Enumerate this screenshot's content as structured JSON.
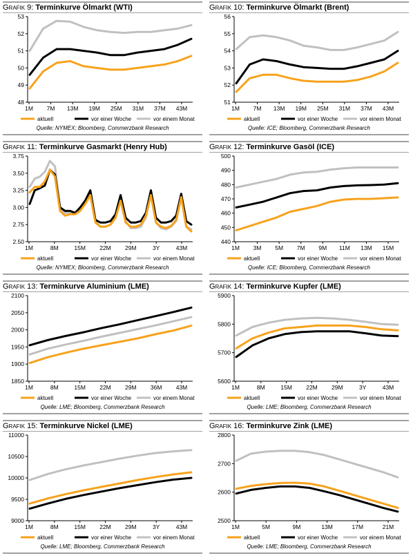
{
  "colors": {
    "aktuell": "#f7a21b",
    "woche": "#000000",
    "monat": "#c0c0c0"
  },
  "chart_data": [
    {
      "type": "line",
      "title_prefix": "Grafik 9:",
      "title": "Terminkurve Ölmarkt (WTI)",
      "source": "Quelle: NYMEX; Bloomberg, Commerzbank Research",
      "x_ticks": [
        "1M",
        "7M",
        "13M",
        "19M",
        "25M",
        "31M",
        "37M",
        "43M"
      ],
      "ylim": [
        48,
        53
      ],
      "y_ticks": [
        48,
        49,
        50,
        51,
        52,
        53
      ],
      "series": [
        {
          "name": "aktuell",
          "values": [
            48.8,
            49.8,
            50.3,
            50.4,
            50.1,
            50.0,
            49.9,
            49.9,
            50.0,
            50.1,
            50.2,
            50.4,
            50.7
          ]
        },
        {
          "name": "vor einer Woche",
          "values": [
            49.6,
            50.6,
            51.1,
            51.1,
            51.0,
            50.9,
            50.75,
            50.75,
            50.9,
            51.0,
            51.1,
            51.35,
            51.7
          ]
        },
        {
          "name": "vor einem Monat",
          "values": [
            51.0,
            52.3,
            52.75,
            52.7,
            52.4,
            52.2,
            52.1,
            52.05,
            52.1,
            52.1,
            52.2,
            52.3,
            52.5
          ]
        }
      ]
    },
    {
      "type": "line",
      "title_prefix": "Grafik 10:",
      "title": "Terminkurve Ölmarkt (Brent)",
      "source": "Quelle: ICE; Bloomberg, Commerzbank Research",
      "x_ticks": [
        "1M",
        "7M",
        "13M",
        "19M",
        "25M",
        "31M",
        "37M",
        "43M"
      ],
      "ylim": [
        51,
        56
      ],
      "y_ticks": [
        51,
        52,
        53,
        54,
        55,
        56
      ],
      "series": [
        {
          "name": "aktuell",
          "values": [
            51.6,
            52.4,
            52.6,
            52.6,
            52.4,
            52.25,
            52.2,
            52.2,
            52.2,
            52.3,
            52.5,
            52.8,
            53.3
          ]
        },
        {
          "name": "vor einer Woche",
          "values": [
            52.1,
            53.2,
            53.5,
            53.4,
            53.2,
            53.05,
            53.0,
            52.95,
            52.95,
            53.1,
            53.3,
            53.5,
            54.0
          ]
        },
        {
          "name": "vor einem Monat",
          "values": [
            54.1,
            54.8,
            54.9,
            54.8,
            54.6,
            54.3,
            54.2,
            54.05,
            54.05,
            54.2,
            54.4,
            54.6,
            55.1
          ]
        }
      ]
    },
    {
      "type": "line",
      "title_prefix": "Grafik 11:",
      "title": "Terminkurve Gasmarkt (Henry Hub)",
      "source": "Quelle: NYMEX; Bloomberg, Commerzbank Research",
      "x_ticks": [
        "1M",
        "8M",
        "15M",
        "22M",
        "29M",
        "3Y",
        "43M"
      ],
      "ylim": [
        2.5,
        3.75
      ],
      "y_ticks": [
        "2.50",
        "2.75",
        "3.00",
        "3.25",
        "3.50",
        "3.75"
      ],
      "series": [
        {
          "name": "aktuell",
          "values": [
            3.22,
            3.3,
            3.3,
            3.38,
            3.55,
            3.45,
            2.95,
            2.88,
            2.9,
            2.9,
            2.95,
            3.05,
            3.18,
            2.78,
            2.72,
            2.72,
            2.75,
            2.85,
            3.1,
            2.78,
            2.72,
            2.72,
            2.75,
            2.88,
            3.18,
            2.78,
            2.72,
            2.7,
            2.73,
            2.82,
            3.15,
            2.72,
            2.65
          ]
        },
        {
          "name": "vor einer Woche",
          "values": [
            3.05,
            3.25,
            3.28,
            3.32,
            3.55,
            3.48,
            3.0,
            2.95,
            2.95,
            2.92,
            3.0,
            3.1,
            3.25,
            2.82,
            2.78,
            2.78,
            2.8,
            2.9,
            3.18,
            2.85,
            2.78,
            2.78,
            2.8,
            2.92,
            3.25,
            2.85,
            2.78,
            2.78,
            2.8,
            2.88,
            3.2,
            2.8,
            2.75
          ]
        },
        {
          "name": "vor einem Monat",
          "values": [
            3.3,
            3.42,
            3.45,
            3.52,
            3.68,
            3.6,
            3.0,
            2.92,
            2.92,
            2.9,
            2.98,
            3.1,
            3.22,
            2.8,
            2.72,
            2.72,
            2.75,
            2.85,
            3.12,
            2.8,
            2.7,
            2.7,
            2.72,
            2.85,
            3.2,
            2.78,
            2.7,
            2.68,
            2.72,
            2.8,
            3.15,
            2.72,
            2.68
          ]
        }
      ]
    },
    {
      "type": "line",
      "title_prefix": "Grafik 12:",
      "title": "Terminkurve Gasöl (ICE)",
      "source": "Quelle: ICE; Bloomberg, Commerzbank Research",
      "x_ticks": [
        "1M",
        "3M",
        "5M",
        "7M",
        "9M",
        "11M",
        "13M",
        "15M"
      ],
      "ylim": [
        440,
        500
      ],
      "y_ticks": [
        440,
        450,
        460,
        470,
        480,
        490,
        500
      ],
      "series": [
        {
          "name": "aktuell",
          "values": [
            448,
            451,
            454,
            457,
            461,
            463,
            465,
            468,
            469.5,
            470,
            470,
            470.5,
            471
          ]
        },
        {
          "name": "vor einer Woche",
          "values": [
            464,
            466,
            468,
            471,
            474,
            475.5,
            476,
            478,
            479,
            479.5,
            479.7,
            480,
            481
          ]
        },
        {
          "name": "vor einem Monat",
          "values": [
            478,
            480,
            482,
            484,
            487,
            488.5,
            489,
            490.5,
            491.5,
            492,
            492,
            492,
            492
          ]
        }
      ]
    },
    {
      "type": "line",
      "title_prefix": "Grafik 13:",
      "title": "Terminkurve Aluminium (LME)",
      "source": "Quelle: LME; Bloomberg, Commerzbank Research",
      "x_ticks": [
        "1M",
        "8M",
        "15M",
        "22M",
        "29M",
        "36M",
        "43M"
      ],
      "ylim": [
        1850,
        2100
      ],
      "y_ticks": [
        1850,
        1900,
        1950,
        2000,
        2050,
        2100
      ],
      "series": [
        {
          "name": "aktuell",
          "values": [
            1903,
            1920,
            1933,
            1945,
            1955,
            1965,
            1975,
            1987,
            1998,
            2012
          ]
        },
        {
          "name": "vor einer Woche",
          "values": [
            1955,
            1970,
            1982,
            1993,
            2005,
            2016,
            2028,
            2040,
            2052,
            2065
          ]
        },
        {
          "name": "vor einem Monat",
          "values": [
            1928,
            1945,
            1957,
            1968,
            1980,
            1991,
            2002,
            2013,
            2025,
            2037
          ]
        }
      ]
    },
    {
      "type": "line",
      "title_prefix": "Grafik 14:",
      "title": "Terminkurve Kupfer (LME)",
      "source": "Quelle: LME; Bloomberg, Commerzbank Research",
      "x_ticks": [
        "1M",
        "8M",
        "15M",
        "22M",
        "29M",
        "3Y",
        "43M"
      ],
      "ylim": [
        5600,
        5900
      ],
      "y_ticks": [
        5600,
        5700,
        5800,
        5900
      ],
      "series": [
        {
          "name": "aktuell",
          "values": [
            5715,
            5750,
            5770,
            5785,
            5790,
            5795,
            5795,
            5795,
            5790,
            5782,
            5778
          ]
        },
        {
          "name": "vor einer Woche",
          "values": [
            5685,
            5725,
            5750,
            5765,
            5772,
            5775,
            5775,
            5775,
            5768,
            5760,
            5758
          ]
        },
        {
          "name": "vor einem Monat",
          "values": [
            5760,
            5790,
            5805,
            5815,
            5820,
            5822,
            5820,
            5815,
            5808,
            5800,
            5798
          ]
        }
      ]
    },
    {
      "type": "line",
      "title_prefix": "Grafik 15:",
      "title": "Terminkurve Nickel (LME)",
      "source": "Quelle: LME; Bloomberg, Commerzbank Research",
      "x_ticks": [
        "1M",
        "8M",
        "15M",
        "22M",
        "29M",
        "3Y",
        "43M"
      ],
      "ylim": [
        9000,
        11000
      ],
      "y_ticks": [
        9000,
        9500,
        10000,
        10500,
        11000
      ],
      "series": [
        {
          "name": "aktuell",
          "values": [
            9400,
            9520,
            9620,
            9710,
            9790,
            9870,
            9950,
            10020,
            10080,
            10130
          ]
        },
        {
          "name": "vor einer Woche",
          "values": [
            9280,
            9400,
            9510,
            9600,
            9680,
            9760,
            9830,
            9900,
            9960,
            10000
          ]
        },
        {
          "name": "vor einem Monat",
          "values": [
            9950,
            10090,
            10200,
            10290,
            10370,
            10450,
            10520,
            10580,
            10620,
            10650
          ]
        }
      ]
    },
    {
      "type": "line",
      "title_prefix": "Grafik 16:",
      "title": "Terminkurve Zink (LME)",
      "source": "Quelle: LME; Bloomberg, Commerzbank Research",
      "x_ticks": [
        "1M",
        "5M",
        "9M",
        "13M",
        "17M",
        "21M"
      ],
      "ylim": [
        2500,
        2800
      ],
      "y_ticks": [
        2500,
        2600,
        2700,
        2800
      ],
      "series": [
        {
          "name": "aktuell",
          "values": [
            2612,
            2622,
            2628,
            2632,
            2633,
            2630,
            2620,
            2605,
            2590,
            2575,
            2560,
            2545
          ]
        },
        {
          "name": "vor einer Woche",
          "values": [
            2595,
            2608,
            2615,
            2620,
            2620,
            2615,
            2603,
            2590,
            2575,
            2560,
            2545,
            2532
          ]
        },
        {
          "name": "vor einem Monat",
          "values": [
            2710,
            2735,
            2742,
            2745,
            2745,
            2740,
            2730,
            2715,
            2700,
            2685,
            2670,
            2652
          ]
        }
      ]
    }
  ]
}
